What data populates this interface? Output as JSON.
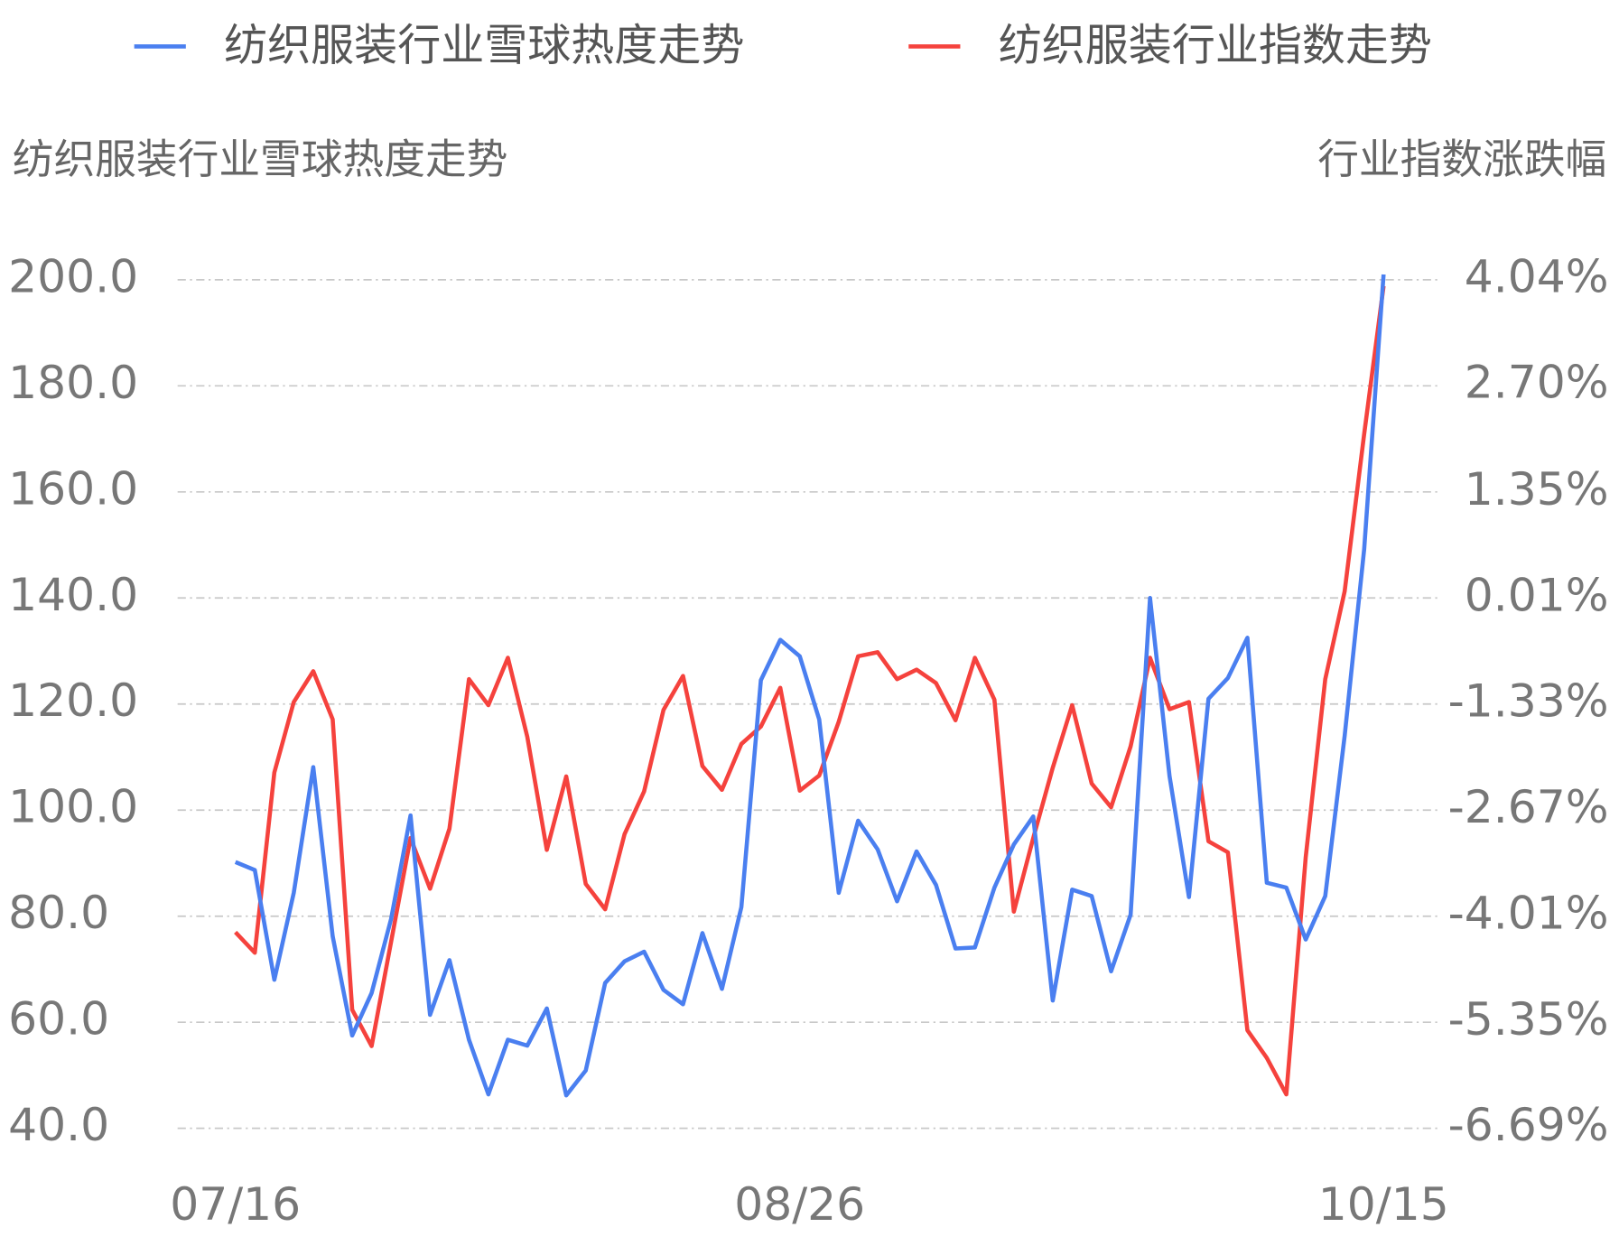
{
  "chart_data": {
    "type": "line",
    "y_label": "纺织服装行业雪球热度走势",
    "y2_label": "行业指数涨跌幅",
    "categories": [
      "07/16",
      null,
      null,
      null,
      null,
      null,
      null,
      null,
      null,
      null,
      null,
      null,
      null,
      null,
      null,
      null,
      null,
      null,
      null,
      null,
      null,
      null,
      null,
      null,
      null,
      null,
      null,
      null,
      null,
      "08/26",
      null,
      null,
      null,
      null,
      null,
      null,
      null,
      null,
      null,
      null,
      null,
      null,
      null,
      null,
      null,
      null,
      null,
      null,
      null,
      null,
      null,
      null,
      null,
      null,
      null,
      null,
      null,
      null,
      null,
      "10/15"
    ],
    "series": [
      {
        "name": "纺织服装行业雪球热度走势",
        "color": "#4a7ff0",
        "axis": "y",
        "values": [
          90.2,
          88.7,
          68.0,
          84.4,
          108.1,
          76.2,
          57.5,
          65.5,
          79.5,
          99.0,
          61.4,
          71.7,
          56.7,
          46.4,
          56.7,
          55.6,
          62.6,
          46.2,
          50.9,
          67.4,
          71.5,
          73.3,
          66.1,
          63.4,
          76.8,
          66.3,
          81.7,
          124.5,
          132.1,
          129.0,
          117.1,
          84.4,
          98.0,
          92.6,
          82.8,
          92.2,
          85.9,
          73.9,
          74.1,
          85.4,
          93.5,
          98.8,
          64.1,
          85.0,
          83.8,
          69.6,
          80.3,
          140.0,
          106.4,
          83.6,
          121.0,
          124.9,
          132.5,
          86.3,
          85.4,
          75.6,
          83.8,
          114.0,
          149.2,
          201.0
        ]
      },
      {
        "name": "纺织服装行业指数走势",
        "color": "#f5423d",
        "axis": "y2",
        "values": [
          -4.21,
          -4.47,
          -2.19,
          -1.3,
          -0.91,
          -1.52,
          -5.19,
          -5.65,
          -4.33,
          -3.02,
          -3.66,
          -2.9,
          -1.01,
          -1.34,
          -0.74,
          -1.74,
          -3.17,
          -2.24,
          -3.6,
          -3.92,
          -2.97,
          -2.43,
          -1.4,
          -0.97,
          -2.11,
          -2.41,
          -1.83,
          -1.61,
          -1.12,
          -2.42,
          -2.23,
          -1.55,
          -0.72,
          -0.67,
          -1.01,
          -0.89,
          -1.06,
          -1.53,
          -0.74,
          -1.27,
          -3.95,
          -3.02,
          -2.13,
          -1.34,
          -2.33,
          -2.63,
          -1.86,
          -0.74,
          -1.39,
          -1.3,
          -3.06,
          -3.2,
          -5.45,
          -5.8,
          -6.26,
          -3.26,
          -1.01,
          0.1,
          2.09,
          3.96
        ]
      }
    ],
    "ylim": [
      40,
      200
    ],
    "yticks": [
      {
        "value": 40,
        "label": "40.0"
      },
      {
        "value": 60,
        "label": "60.0"
      },
      {
        "value": 80,
        "label": "80.0"
      },
      {
        "value": 100,
        "label": "100.0"
      },
      {
        "value": 120,
        "label": "120.0"
      },
      {
        "value": 140,
        "label": "140.0"
      },
      {
        "value": 160,
        "label": "160.0"
      },
      {
        "value": 180,
        "label": "180.0"
      },
      {
        "value": 200,
        "label": "200.0"
      }
    ],
    "y2lim": [
      -6.69,
      4.04
    ],
    "y2ticks": [
      {
        "value": -6.69,
        "label": "-6.69%"
      },
      {
        "value": -5.35,
        "label": "-5.35%"
      },
      {
        "value": -4.01,
        "label": "-4.01%"
      },
      {
        "value": -2.67,
        "label": "-2.67%"
      },
      {
        "value": -1.33,
        "label": "-1.33%"
      },
      {
        "value": 0.01,
        "label": "0.01%"
      },
      {
        "value": 1.35,
        "label": "1.35%"
      },
      {
        "value": 2.7,
        "label": "2.70%"
      },
      {
        "value": 4.04,
        "label": "4.04%"
      }
    ],
    "grid": true
  }
}
